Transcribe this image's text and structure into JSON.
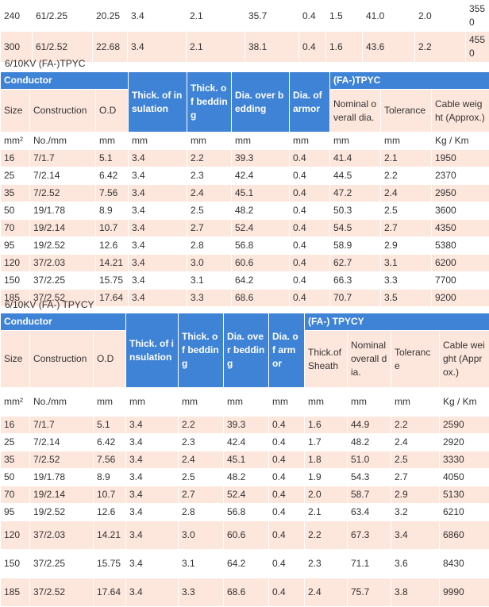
{
  "top_rows": [
    [
      "240",
      "61/2.25",
      "20.25",
      "3.4",
      "2.1",
      "35.7",
      "0.4",
      "1.5",
      "41.0",
      "2.0",
      "3550"
    ],
    [
      "300",
      "61/2.52",
      "22.68",
      "3.4",
      "2.1",
      "38.1",
      "0.4",
      "1.6",
      "43.6",
      "2.2",
      "4550"
    ]
  ],
  "tpyc": {
    "caption": "6/10KV (FA-)TPYC",
    "group_conductor": "Conductor",
    "group_type": "(FA-)TPYC",
    "headers": {
      "thick_insulation": "Thick. of insulation",
      "thick_bedding": "Thick. of bedding",
      "dia_over_bedding": "Dia. over bedding",
      "dia_armor": "Dia. of armor",
      "size": "Size",
      "construction": "Construction",
      "od": "O.D",
      "nominal_dia": "Nominal overall dia.",
      "tolerance": "Tolerance",
      "cable_weight": "Cable weight (Approx.)"
    },
    "units": [
      "mm²",
      "No./mm",
      "mm",
      "mm",
      "mm",
      "mm",
      "mm",
      "mm",
      "mm",
      "Kg / Km"
    ],
    "rows": [
      [
        "16",
        "7/1.7",
        "5.1",
        "3.4",
        "2.2",
        "39.3",
        "0.4",
        "41.4",
        "2.1",
        "1950"
      ],
      [
        "25",
        "7/2.14",
        "6.42",
        "3.4",
        "2.3",
        "42.4",
        "0.4",
        "44.5",
        "2.2",
        "2370"
      ],
      [
        "35",
        "7/2.52",
        "7.56",
        "3.4",
        "2.4",
        "45.1",
        "0.4",
        "47.2",
        "2.4",
        "2950"
      ],
      [
        "50",
        "19/1.78",
        "8.9",
        "3.4",
        "2.5",
        "48.2",
        "0.4",
        "50.3",
        "2.5",
        "3600"
      ],
      [
        "70",
        "19/2.14",
        "10.7",
        "3.4",
        "2.7",
        "52.4",
        "0.4",
        "54.5",
        "2.7",
        "4350"
      ],
      [
        "95",
        "19/2.52",
        "12.6",
        "3.4",
        "2.8",
        "56.8",
        "0.4",
        "58.9",
        "2.9",
        "5380"
      ],
      [
        "120",
        "37/2.03",
        "14.21",
        "3.4",
        "3.0",
        "60.6",
        "0.4",
        "62.7",
        "3.1",
        "6200"
      ],
      [
        "150",
        "37/2.25",
        "15.75",
        "3.4",
        "3.1",
        "64.2",
        "0.4",
        "66.3",
        "3.3",
        "7700"
      ],
      [
        "185",
        "37/2.52",
        "17.64",
        "3.4",
        "3.3",
        "68.6",
        "0.4",
        "70.7",
        "3.5",
        "9200"
      ]
    ]
  },
  "tpycy": {
    "caption": "6/10KV (FA-) TPYCY",
    "group_conductor": "Conductor",
    "group_type": "(FA-) TPYCY",
    "headers": {
      "thick_insulation": "Thick. of insulation",
      "thick_bedding": "Thick. of bedding",
      "dia_over_bedding": "Dia. over bedding",
      "dia_armor": "Dia. of armor",
      "size": "Size",
      "construction": "Construction",
      "od": "O.D",
      "thick_sheath": "Thick.of Sheath",
      "nominal_dia": "Nominal overall dia.",
      "tolerance": "Tolerance",
      "cable_weight": "Cable weight (Approx.)"
    },
    "units": [
      "mm²",
      "No./mm",
      "mm",
      "mm",
      "mm",
      "mm",
      "mm",
      "mm",
      "mm",
      "mm",
      "Kg / Km"
    ],
    "rows": [
      [
        "16",
        "7/1.7",
        "5.1",
        "3.4",
        "2.2",
        "39.3",
        "0.4",
        "1.6",
        "44.9",
        "2.2",
        "2590"
      ],
      [
        "25",
        "7/2.14",
        "6.42",
        "3.4",
        "2.3",
        "42.4",
        "0.4",
        "1.7",
        "48.2",
        "2.4",
        "2920"
      ],
      [
        "35",
        "7/2.52",
        "7.56",
        "3.4",
        "2.4",
        "45.1",
        "0.4",
        "1.8",
        "51.0",
        "2.5",
        "3330"
      ],
      [
        "50",
        "19/1.78",
        "8.9",
        "3.4",
        "2.5",
        "48.2",
        "0.4",
        "1.9",
        "54.3",
        "2.7",
        "4050"
      ],
      [
        "70",
        "19/2.14",
        "10.7",
        "3.4",
        "2.7",
        "52.4",
        "0.4",
        "2.0",
        "58.7",
        "2.9",
        "5130"
      ],
      [
        "95",
        "19/2.52",
        "12.6",
        "3.4",
        "2.8",
        "56.8",
        "0.4",
        "2.1",
        "63.4",
        "3.2",
        "6210"
      ],
      [
        "120",
        "37/2.03",
        "14.21",
        "3.4",
        "3.0",
        "60.6",
        "0.4",
        "2.2",
        "67.3",
        "3.4",
        "6860"
      ],
      [
        "150",
        "37/2.25",
        "15.75",
        "3.4",
        "3.1",
        "64.2",
        "0.4",
        "2.3",
        "71.1",
        "3.6",
        "8430"
      ],
      [
        "185",
        "37/2.52",
        "17.64",
        "3.4",
        "3.3",
        "68.6",
        "0.4",
        "2.4",
        "75.7",
        "3.8",
        "9990"
      ]
    ]
  }
}
